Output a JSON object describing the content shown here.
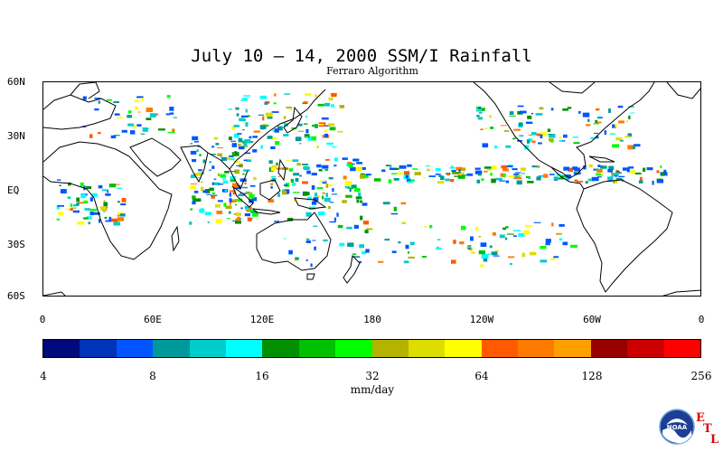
{
  "title": "July 10 – 14, 2000 SSM/I Rainfall",
  "subtitle": "Ferraro Algorithm",
  "lat_labels": [
    "60N",
    "30N",
    "EQ",
    "30S",
    "60S"
  ],
  "lon_labels": [
    "0",
    "60E",
    "120E",
    "180",
    "120W",
    "60W",
    "0"
  ],
  "colorbar": {
    "labels": [
      "4",
      "8",
      "16",
      "32",
      "64",
      "128",
      "256"
    ],
    "unit": "mm/day",
    "colors": [
      "#000a7a",
      "#0033b8",
      "#0055ff",
      "#009999",
      "#00cccc",
      "#00ffff",
      "#009000",
      "#00c000",
      "#00ff00",
      "#b3b300",
      "#dddd00",
      "#ffff00",
      "#ff5a00",
      "#ff7a00",
      "#ffa000",
      "#990000",
      "#cc0000",
      "#ff0000"
    ]
  },
  "logo": {
    "org_text": "NOAA",
    "etl_letters": [
      "E",
      "T",
      "L"
    ]
  },
  "chart_data": {
    "type": "heatmap",
    "title": "July 10 – 14, 2000 SSM/I Rainfall",
    "subtitle": "Ferraro Algorithm",
    "x_ticks": [
      "0",
      "60E",
      "120E",
      "180",
      "120W",
      "60W",
      "0"
    ],
    "y_ticks": [
      "60N",
      "30N",
      "EQ",
      "30S",
      "60S"
    ],
    "xlim": [
      0,
      360
    ],
    "ylim": [
      -60,
      60
    ],
    "colorbar_ticks": [
      4,
      8,
      16,
      32,
      64,
      128,
      256
    ],
    "colorbar_label": "mm/day",
    "colorbar_scale": "log2"
  }
}
